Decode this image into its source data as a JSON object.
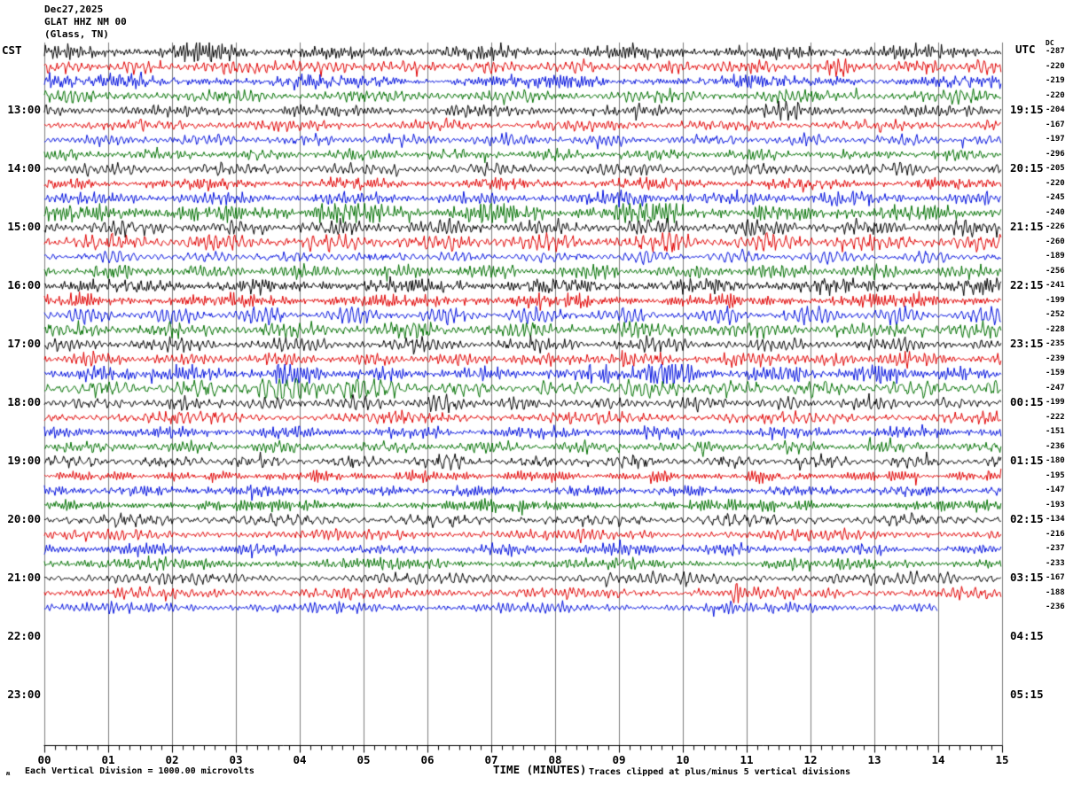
{
  "title": {
    "date": "Dec27,2025",
    "station": "GLAT HHZ NM 00",
    "location": "(Glass, TN)"
  },
  "left_axis": {
    "header": "CST",
    "hour_labels": [
      "13:00",
      "14:00",
      "15:00",
      "16:00",
      "17:00",
      "18:00",
      "19:00",
      "20:00",
      "21:00",
      "22:00",
      "23:00"
    ]
  },
  "right_axis": {
    "header": "UTC",
    "dc_header": "DC",
    "hour_labels": [
      "19:15",
      "20:15",
      "21:15",
      "22:15",
      "23:15",
      "00:15",
      "01:15",
      "02:15",
      "03:15",
      "04:15",
      "05:15"
    ]
  },
  "x_axis": {
    "title": "TIME (MINUTES)",
    "tick_labels": [
      "00",
      "01",
      "02",
      "03",
      "04",
      "05",
      "06",
      "07",
      "08",
      "09",
      "10",
      "11",
      "12",
      "13",
      "14",
      "15"
    ]
  },
  "footer": {
    "watermark": "ʍ",
    "scale_note": "Each Vertical Division = 1000.00 microvolts",
    "clip_note": "Traces clipped at plus/minus 5 vertical divisions"
  },
  "colors": {
    "black": "#000000",
    "red": "#e00000",
    "blue": "#0010dd",
    "green": "#007000",
    "grid": "#7d7d7d",
    "axis": "#000000"
  },
  "chart_data": {
    "type": "line",
    "kind": "helicorder-seismogram",
    "xlabel": "TIME (MINUTES)",
    "xlim": [
      0,
      15
    ],
    "minutes_per_row": 15,
    "rows_per_hour": 4,
    "minor_tick_seconds": 10,
    "grid": "vertical-every-minute",
    "trace_color_cycle": [
      "black",
      "red",
      "blue",
      "green"
    ],
    "clip_divisions": 5,
    "microvolts_per_division": 1000.0,
    "rows": [
      {
        "color": "black",
        "dc": -287,
        "amp": 1.25,
        "end_minute": 15,
        "events": [
          {
            "m": 2.6,
            "a": 0.8,
            "w": 0.25
          }
        ]
      },
      {
        "color": "red",
        "dc": -220,
        "amp": 1.2,
        "end_minute": 15,
        "events": [
          {
            "m": 3.5,
            "a": 0.7,
            "w": 0.2
          },
          {
            "m": 14.6,
            "a": 0.7,
            "w": 0.15
          }
        ]
      },
      {
        "color": "blue",
        "dc": -219,
        "amp": 1.15,
        "end_minute": 15,
        "events": []
      },
      {
        "color": "green",
        "dc": -220,
        "amp": 1.1,
        "end_minute": 15,
        "events": []
      },
      {
        "color": "black",
        "dc": -204,
        "amp": 1.0,
        "end_minute": 15,
        "events": [
          {
            "m": 11.6,
            "a": 0.8,
            "w": 0.2
          }
        ]
      },
      {
        "color": "red",
        "dc": -167,
        "amp": 0.95,
        "end_minute": 15,
        "events": []
      },
      {
        "color": "blue",
        "dc": -197,
        "amp": 0.95,
        "end_minute": 15,
        "events": []
      },
      {
        "color": "green",
        "dc": -296,
        "amp": 0.95,
        "end_minute": 15,
        "events": []
      },
      {
        "color": "black",
        "dc": -205,
        "amp": 1.0,
        "end_minute": 15,
        "events": []
      },
      {
        "color": "red",
        "dc": -220,
        "amp": 1.0,
        "end_minute": 15,
        "events": []
      },
      {
        "color": "blue",
        "dc": -245,
        "amp": 1.05,
        "end_minute": 15,
        "events": [
          {
            "m": 9.3,
            "a": 0.6,
            "w": 0.4
          },
          {
            "m": 12.3,
            "a": 0.5,
            "w": 0.3
          }
        ]
      },
      {
        "color": "green",
        "dc": -240,
        "amp": 1.5,
        "end_minute": 15,
        "events": [
          {
            "m": 4.6,
            "a": 0.7,
            "w": 0.3
          },
          {
            "m": 7.0,
            "a": 0.6,
            "w": 0.3
          },
          {
            "m": 9.6,
            "a": 0.8,
            "w": 0.35
          }
        ]
      },
      {
        "color": "black",
        "dc": -226,
        "amp": 1.3,
        "end_minute": 15,
        "events": []
      },
      {
        "color": "red",
        "dc": -260,
        "amp": 1.4,
        "end_minute": 15,
        "events": [
          {
            "m": 9.8,
            "a": 1.1,
            "w": 0.15
          }
        ]
      },
      {
        "color": "blue",
        "dc": -189,
        "amp": 1.0,
        "end_minute": 15,
        "events": []
      },
      {
        "color": "green",
        "dc": -256,
        "amp": 1.2,
        "end_minute": 15,
        "events": []
      },
      {
        "color": "black",
        "dc": -241,
        "amp": 1.3,
        "end_minute": 15,
        "events": []
      },
      {
        "color": "red",
        "dc": -199,
        "amp": 1.2,
        "end_minute": 15,
        "events": []
      },
      {
        "color": "blue",
        "dc": -252,
        "amp": 1.3,
        "end_minute": 15,
        "events": []
      },
      {
        "color": "green",
        "dc": -228,
        "amp": 1.3,
        "end_minute": 15,
        "events": [
          {
            "m": 10.1,
            "a": 0.7,
            "w": 0.2
          }
        ]
      },
      {
        "color": "black",
        "dc": -235,
        "amp": 1.1,
        "end_minute": 15,
        "events": []
      },
      {
        "color": "red",
        "dc": -239,
        "amp": 1.1,
        "end_minute": 15,
        "events": [
          {
            "m": 8.9,
            "a": 0.7,
            "w": 0.25
          },
          {
            "m": 11.5,
            "a": 0.9,
            "w": 0.2
          },
          {
            "m": 13.3,
            "a": 0.5,
            "w": 0.2
          }
        ]
      },
      {
        "color": "blue",
        "dc": -159,
        "amp": 1.2,
        "end_minute": 15,
        "events": [
          {
            "m": 1.8,
            "a": 0.6,
            "w": 0.3
          },
          {
            "m": 3.8,
            "a": 1.3,
            "w": 0.25
          },
          {
            "m": 9.4,
            "a": 2.0,
            "w": 0.45
          },
          {
            "m": 11.8,
            "a": 0.6,
            "w": 0.2
          },
          {
            "m": 13.3,
            "a": 0.8,
            "w": 0.2
          }
        ]
      },
      {
        "color": "green",
        "dc": -247,
        "amp": 1.3,
        "end_minute": 15,
        "events": [
          {
            "m": 4.2,
            "a": 1.2,
            "w": 0.8
          },
          {
            "m": 9.7,
            "a": 0.5,
            "w": 0.3
          }
        ]
      },
      {
        "color": "black",
        "dc": -199,
        "amp": 1.1,
        "end_minute": 15,
        "events": [
          {
            "m": 6.3,
            "a": 0.5,
            "w": 0.3
          }
        ]
      },
      {
        "color": "red",
        "dc": -222,
        "amp": 1.0,
        "end_minute": 15,
        "events": []
      },
      {
        "color": "blue",
        "dc": -151,
        "amp": 1.0,
        "end_minute": 15,
        "events": []
      },
      {
        "color": "green",
        "dc": -236,
        "amp": 1.0,
        "end_minute": 15,
        "events": []
      },
      {
        "color": "black",
        "dc": -180,
        "amp": 1.0,
        "end_minute": 15,
        "events": [
          {
            "m": 6.3,
            "a": 0.5,
            "w": 0.25
          }
        ]
      },
      {
        "color": "red",
        "dc": -195,
        "amp": 0.95,
        "end_minute": 15,
        "events": []
      },
      {
        "color": "blue",
        "dc": -147,
        "amp": 0.95,
        "end_minute": 15,
        "events": []
      },
      {
        "color": "green",
        "dc": -193,
        "amp": 1.0,
        "end_minute": 15,
        "events": []
      },
      {
        "color": "black",
        "dc": -134,
        "amp": 1.0,
        "end_minute": 15,
        "events": []
      },
      {
        "color": "red",
        "dc": -216,
        "amp": 0.95,
        "end_minute": 15,
        "events": []
      },
      {
        "color": "blue",
        "dc": -237,
        "amp": 0.95,
        "end_minute": 15,
        "events": []
      },
      {
        "color": "green",
        "dc": -233,
        "amp": 1.0,
        "end_minute": 15,
        "events": []
      },
      {
        "color": "black",
        "dc": -167,
        "amp": 1.0,
        "end_minute": 15,
        "events": []
      },
      {
        "color": "red",
        "dc": -188,
        "amp": 1.0,
        "end_minute": 15,
        "events": [
          {
            "m": 10.85,
            "a": 2.5,
            "w": 0.05
          }
        ]
      },
      {
        "color": "blue",
        "dc": -236,
        "amp": 0.9,
        "end_minute": 14,
        "events": []
      }
    ]
  }
}
